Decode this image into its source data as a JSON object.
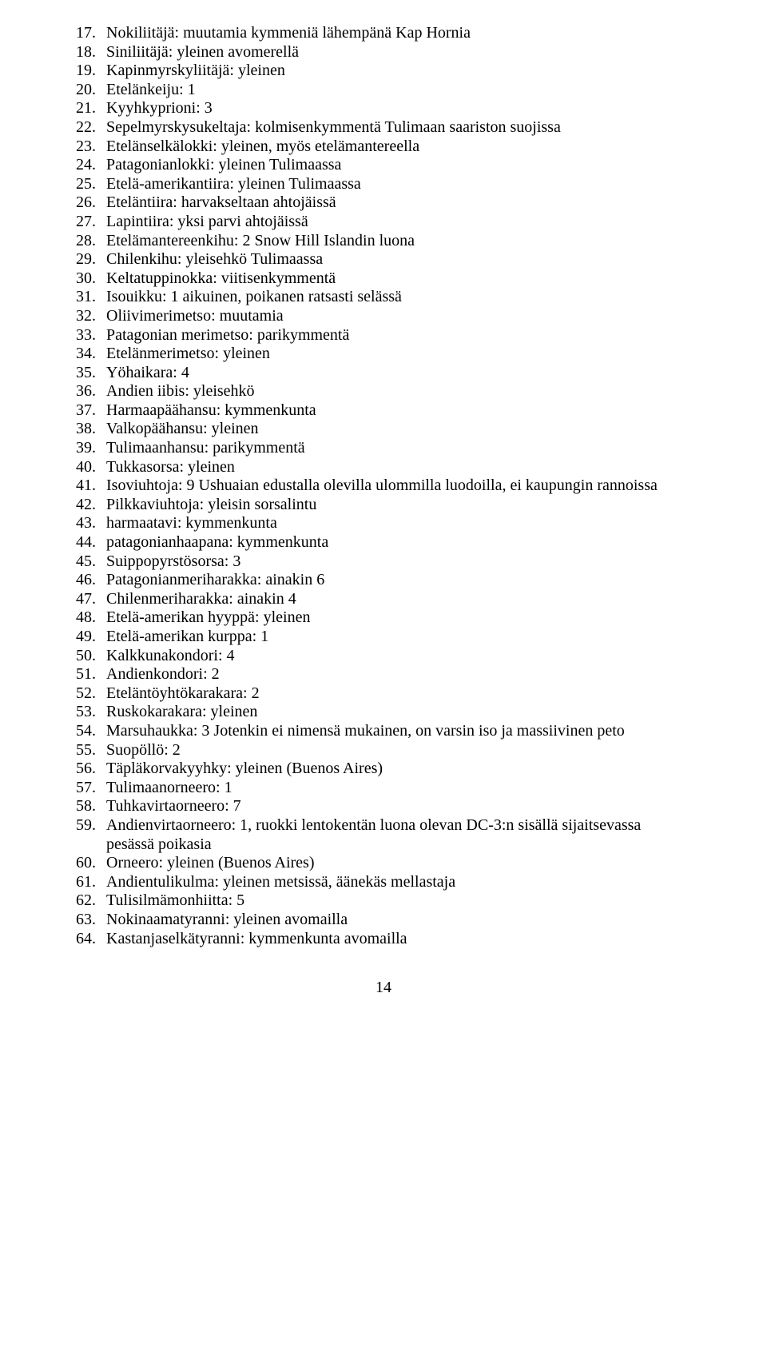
{
  "start": 17,
  "items": [
    "Nokiliitäjä: muutamia kymmeniä lähempänä Kap Hornia",
    "Siniliitäjä: yleinen avomerellä",
    "Kapinmyrskyliitäjä: yleinen",
    "Etelänkeiju: 1",
    "Kyyhkyprioni: 3",
    "Sepelmyrskysukeltaja: kolmisenkymmentä Tulimaan saariston suojissa",
    "Etelänselkälokki: yleinen, myös etelämantereella",
    "Patagonianlokki: yleinen Tulimaassa",
    "Etelä-amerikantiira: yleinen Tulimaassa",
    "Eteläntiira: harvakseltaan ahtojäissä",
    "Lapintiira: yksi parvi ahtojäissä",
    "Etelämantereenkihu: 2 Snow Hill Islandin luona",
    "Chilenkihu: yleisehkö Tulimaassa",
    "Keltatuppinokka: viitisenkymmentä",
    "Isouikku: 1 aikuinen, poikanen ratsasti selässä",
    "Oliivimerimetso: muutamia",
    "Patagonian merimetso: parikymmentä",
    "Etelänmerimetso: yleinen",
    "Yöhaikara: 4",
    "Andien iibis: yleisehkö",
    "Harmaapäähansu: kymmenkunta",
    "Valkopäähansu: yleinen",
    "Tulimaanhansu: parikymmentä",
    "Tukkasorsa: yleinen",
    "Isoviuhtoja: 9 Ushuaian edustalla olevilla ulommilla luodoilla, ei kaupungin rannoissa",
    "Pilkkaviuhtoja: yleisin sorsalintu",
    "harmaatavi: kymmenkunta",
    "patagonianhaapana: kymmenkunta",
    "Suippopyrstösorsa: 3",
    "Patagonianmeriharakka: ainakin 6",
    "Chilenmeriharakka: ainakin 4",
    "Etelä-amerikan hyyppä: yleinen",
    "Etelä-amerikan kurppa: 1",
    "Kalkkunakondori: 4",
    "Andienkondori: 2",
    "Eteläntöyhtökarakara: 2",
    "Ruskokarakara: yleinen",
    "Marsuhaukka: 3 Jotenkin ei nimensä mukainen, on varsin iso ja massiivinen peto",
    "Suopöllö: 2",
    "Täpläkorvakyyhky: yleinen (Buenos Aires)",
    "Tulimaanorneero: 1",
    "Tuhkavirtaorneero: 7",
    "Andienvirtaorneero: 1, ruokki lentokentän luona olevan DC-3:n sisällä sijaitsevassa pesässä poikasia",
    "Orneero: yleinen (Buenos Aires)",
    "Andientulikulma: yleinen metsissä, äänekäs mellastaja",
    "Tulisilmämonhiitta: 5",
    "Nokinaamatyranni: yleinen avomailla",
    "Kastanjaselkätyranni: kymmenkunta avomailla"
  ],
  "pageNumber": "14"
}
